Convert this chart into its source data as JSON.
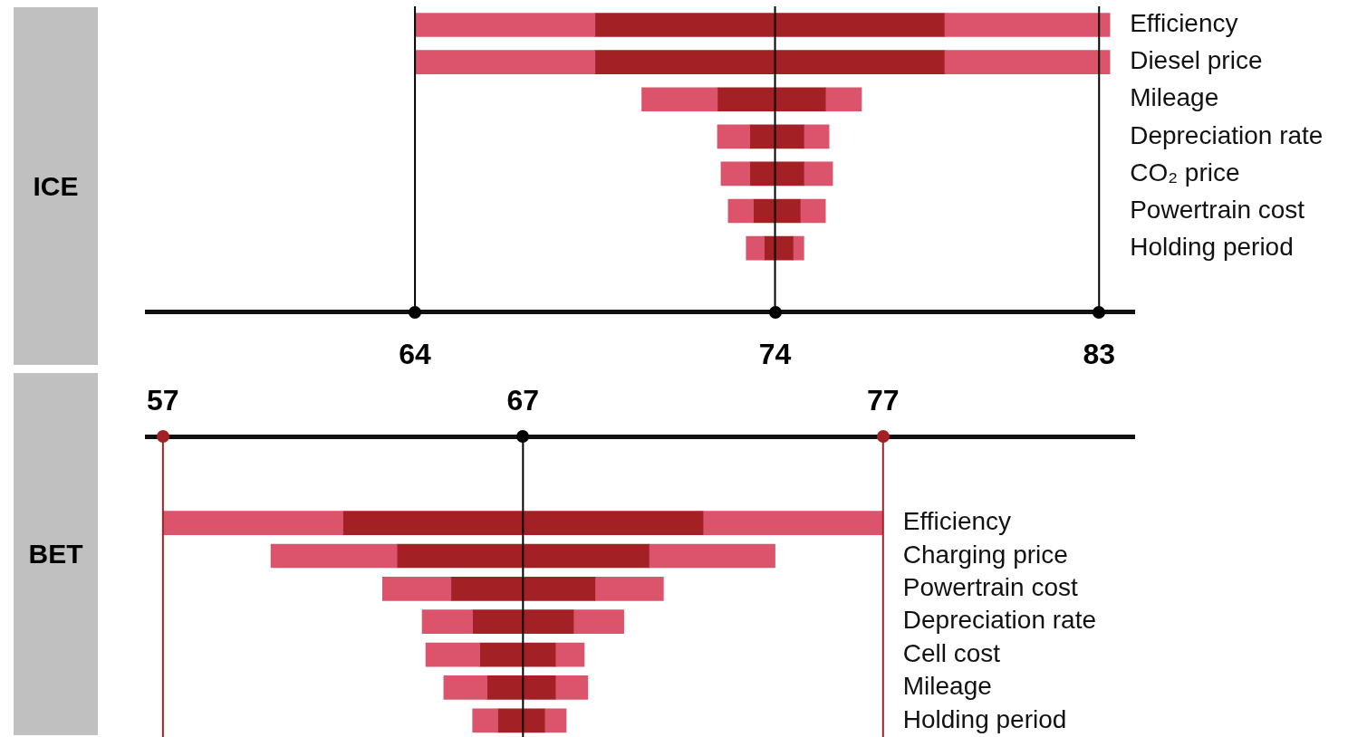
{
  "chart_data": [
    {
      "type": "bar",
      "title": "ICE",
      "orientation": "horizontal",
      "categories": [
        "Efficiency",
        "Diesel price",
        "Mileage",
        "Depreciation rate",
        "CO₂ price",
        "Powertrain cost",
        "Holding period"
      ],
      "series": [
        {
          "color": "#dc546b",
          "base": [
            64,
            64,
            70.3,
            72.4,
            72.5,
            72.7,
            73.2
          ],
          "values": [
            5,
            5,
            2.1,
            0.9,
            0.8,
            0.7,
            0.5
          ]
        },
        {
          "color": "#a32024",
          "base": [
            69,
            69,
            72.4,
            73.3,
            73.3,
            73.4,
            73.7
          ],
          "values": [
            9.7,
            9.7,
            3.0,
            1.5,
            1.5,
            1.3,
            0.8
          ]
        },
        {
          "color": "#dc546b",
          "base": [
            78.7,
            78.7,
            75.4,
            74.8,
            74.8,
            74.7,
            74.5
          ],
          "values": [
            4.6,
            4.6,
            1.0,
            0.7,
            0.8,
            0.7,
            0.3
          ]
        }
      ],
      "xlim": [
        56.5,
        84
      ],
      "xticks": [
        64,
        74,
        83
      ],
      "ref_lines": [
        {
          "axis": "x",
          "value": 64,
          "color": "#000000"
        },
        {
          "axis": "x",
          "value": 74,
          "color": "#000000"
        },
        {
          "axis": "x",
          "value": 83,
          "color": "#000000"
        }
      ]
    },
    {
      "type": "bar",
      "title": "BET",
      "orientation": "horizontal",
      "categories": [
        "Efficiency",
        "Charging price",
        "Powertrain cost",
        "Depreciation rate",
        "Cell cost",
        "Mileage",
        "Holding period"
      ],
      "series": [
        {
          "color": "#dc546b",
          "base": [
            57,
            60,
            63.1,
            64.2,
            64.3,
            64.8,
            65.6
          ],
          "values": [
            5,
            3.5,
            1.9,
            1.4,
            1.5,
            1.2,
            0.7
          ]
        },
        {
          "color": "#a32024",
          "base": [
            62,
            63.5,
            65,
            65.6,
            65.8,
            66,
            66.3
          ],
          "values": [
            10,
            7,
            4,
            2.8,
            2.1,
            1.9,
            1.3
          ]
        },
        {
          "color": "#dc546b",
          "base": [
            72,
            70.5,
            69,
            68.4,
            67.9,
            67.9,
            67.6
          ],
          "values": [
            5,
            3.5,
            1.9,
            1.4,
            0.8,
            0.9,
            0.6
          ]
        }
      ],
      "xlim": [
        56.5,
        84
      ],
      "xticks": [
        57,
        67,
        77
      ],
      "ref_lines": [
        {
          "axis": "x",
          "value": 57,
          "color": "#a32024"
        },
        {
          "axis": "x",
          "value": 67,
          "color": "#000000"
        },
        {
          "axis": "x",
          "value": 77,
          "color": "#a32024"
        }
      ]
    }
  ]
}
